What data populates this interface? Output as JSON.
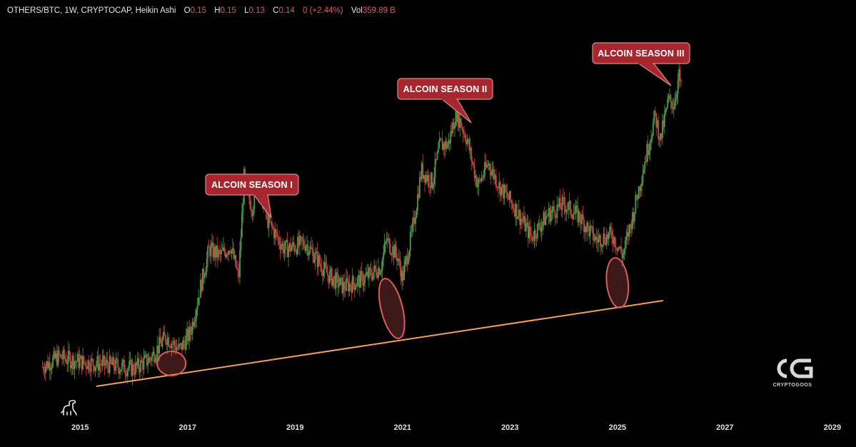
{
  "header": {
    "symbol": "OTHERS/BTC, 1W, CRYPTOCAP, Heikin Ashi",
    "o_label": "O",
    "o_value": "0.15",
    "h_label": "H",
    "h_value": "0.15",
    "l_label": "L",
    "l_value": "0.13",
    "c_label": "C",
    "c_value": "0.14",
    "change": "0 (+2.44%)",
    "vol_label": "Vol",
    "vol_value": "359.89 B"
  },
  "colors": {
    "background": "#000000",
    "up_candle": "#4f9a4a",
    "down_candle": "#c0443f",
    "trendline": "#f5a05a",
    "callout_fill": "#a8272e",
    "callout_border": "#d88a8a",
    "highlight_ellipse": "#e05a5a"
  },
  "chart_data": {
    "type": "candlestick",
    "interval": "1W",
    "style": "Heikin Ashi",
    "x_axis": {
      "ticks": [
        "2015",
        "2017",
        "2019",
        "2021",
        "2023",
        "2025",
        "2027",
        "2029"
      ],
      "range": [
        2014.0,
        2029.6
      ]
    },
    "y_axis": {
      "scale": "log",
      "visible": false
    },
    "series": [
      {
        "name": "OTHERS/BTC",
        "points": [
          {
            "t": 2014.3,
            "v": 0.01
          },
          {
            "t": 2014.6,
            "v": 0.011
          },
          {
            "t": 2015.0,
            "v": 0.0105
          },
          {
            "t": 2015.5,
            "v": 0.0102
          },
          {
            "t": 2016.0,
            "v": 0.0098
          },
          {
            "t": 2016.3,
            "v": 0.0108
          },
          {
            "t": 2016.6,
            "v": 0.0135
          },
          {
            "t": 2016.85,
            "v": 0.0118
          },
          {
            "t": 2017.05,
            "v": 0.014
          },
          {
            "t": 2017.2,
            "v": 0.02
          },
          {
            "t": 2017.4,
            "v": 0.032
          },
          {
            "t": 2017.6,
            "v": 0.03
          },
          {
            "t": 2017.8,
            "v": 0.033
          },
          {
            "t": 2017.95,
            "v": 0.024
          },
          {
            "t": 2018.05,
            "v": 0.065
          },
          {
            "t": 2018.2,
            "v": 0.048
          },
          {
            "t": 2018.3,
            "v": 0.063
          },
          {
            "t": 2018.5,
            "v": 0.042
          },
          {
            "t": 2018.8,
            "v": 0.032
          },
          {
            "t": 2019.2,
            "v": 0.034
          },
          {
            "t": 2019.6,
            "v": 0.025
          },
          {
            "t": 2019.9,
            "v": 0.022
          },
          {
            "t": 2020.3,
            "v": 0.024
          },
          {
            "t": 2020.6,
            "v": 0.027
          },
          {
            "t": 2020.7,
            "v": 0.035
          },
          {
            "t": 2020.9,
            "v": 0.03
          },
          {
            "t": 2021.0,
            "v": 0.024
          },
          {
            "t": 2021.2,
            "v": 0.04
          },
          {
            "t": 2021.35,
            "v": 0.07
          },
          {
            "t": 2021.55,
            "v": 0.062
          },
          {
            "t": 2021.7,
            "v": 0.09
          },
          {
            "t": 2021.85,
            "v": 0.09
          },
          {
            "t": 2022.0,
            "v": 0.125
          },
          {
            "t": 2022.2,
            "v": 0.095
          },
          {
            "t": 2022.4,
            "v": 0.06
          },
          {
            "t": 2022.6,
            "v": 0.075
          },
          {
            "t": 2022.8,
            "v": 0.06
          },
          {
            "t": 2023.1,
            "v": 0.048
          },
          {
            "t": 2023.4,
            "v": 0.036
          },
          {
            "t": 2023.7,
            "v": 0.045
          },
          {
            "t": 2024.0,
            "v": 0.05
          },
          {
            "t": 2024.3,
            "v": 0.044
          },
          {
            "t": 2024.6,
            "v": 0.035
          },
          {
            "t": 2024.9,
            "v": 0.037
          },
          {
            "t": 2025.1,
            "v": 0.03
          },
          {
            "t": 2025.3,
            "v": 0.046
          },
          {
            "t": 2025.5,
            "v": 0.075
          },
          {
            "t": 2025.7,
            "v": 0.12
          },
          {
            "t": 2025.8,
            "v": 0.095
          },
          {
            "t": 2025.95,
            "v": 0.14
          },
          {
            "t": 2026.05,
            "v": 0.135
          },
          {
            "t": 2026.15,
            "v": 0.18
          },
          {
            "t": 2026.2,
            "v": 0.145
          }
        ]
      }
    ],
    "trendline": {
      "from": {
        "t": 2015.3
      },
      "to": {
        "t": 2025.85
      }
    },
    "annotations": [
      {
        "label": "ALCOIN SEASON I",
        "t": 2018.05
      },
      {
        "label": "ALCOIN SEASON II",
        "t": 2022.0
      },
      {
        "label": "ALCOIN SEASON III",
        "t": 2026.15
      }
    ],
    "highlights": [
      {
        "t": 2016.7
      },
      {
        "t": 2020.8
      },
      {
        "t": 2025.0
      }
    ],
    "grid": false,
    "legend": "none"
  },
  "logo": {
    "text": "CRYPTOGOOS",
    "mark": "CG"
  },
  "watermark_icon": "dinosaur-icon"
}
